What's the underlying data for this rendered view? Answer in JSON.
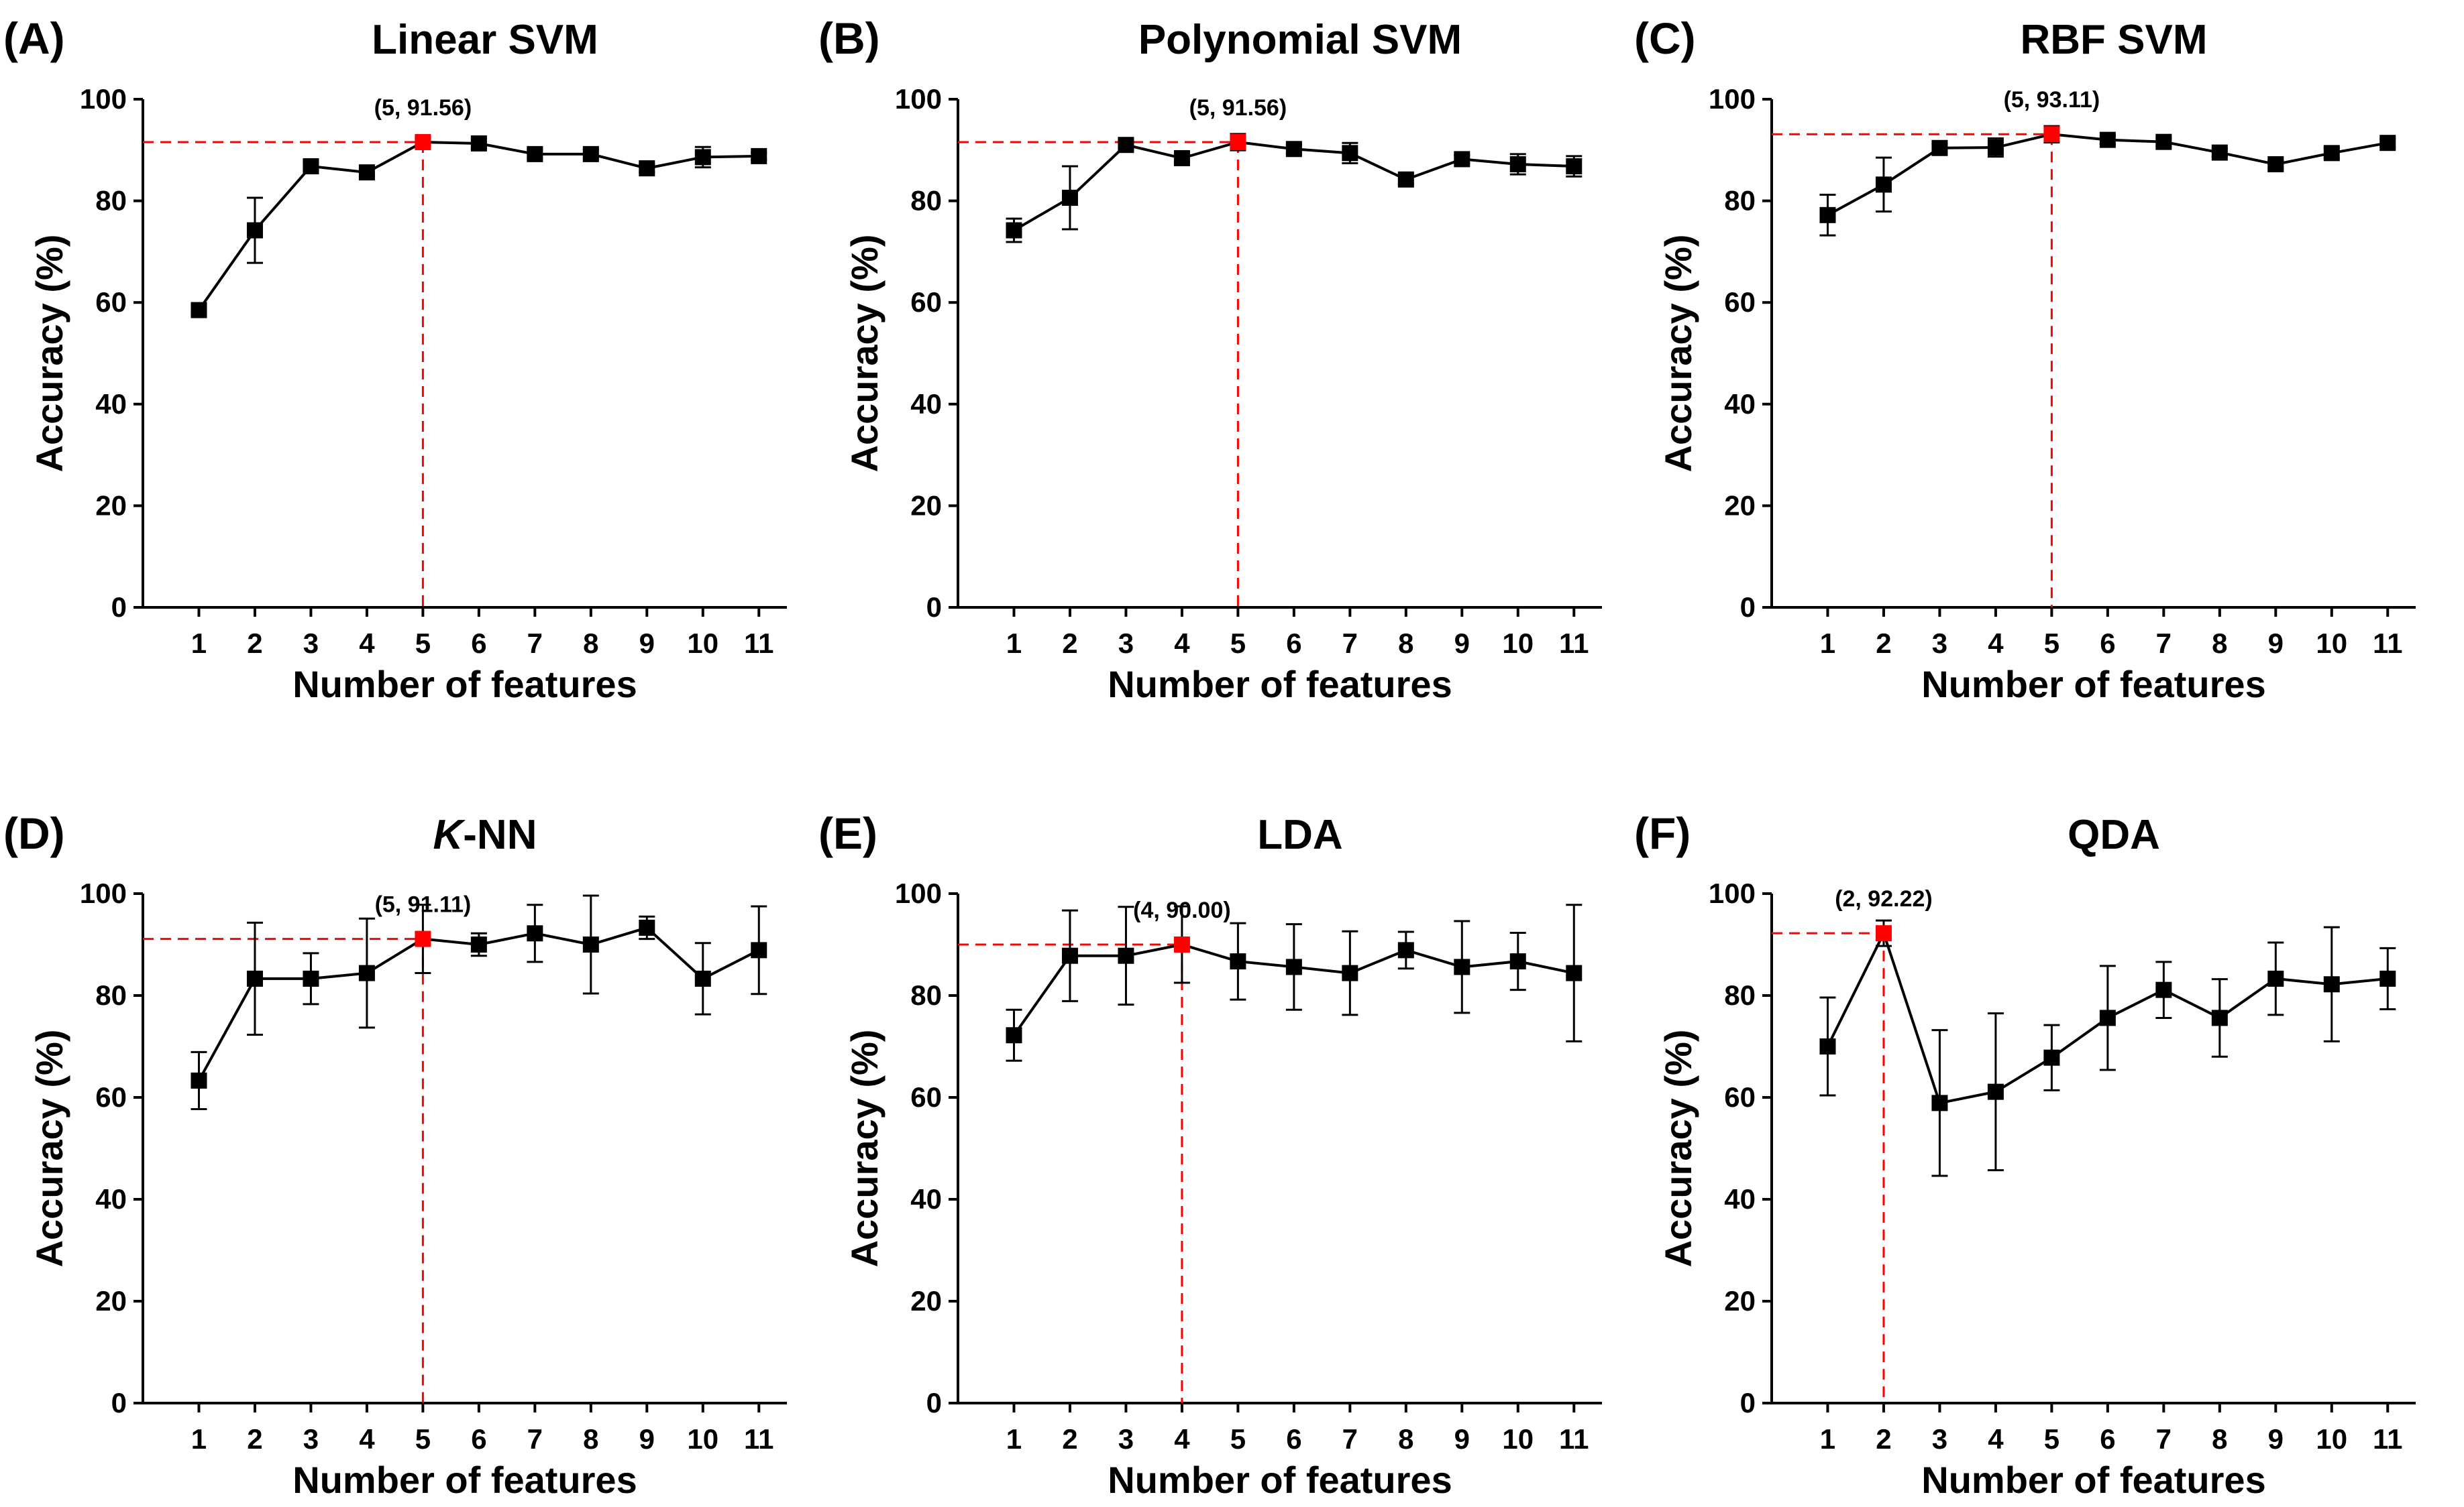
{
  "colors": {
    "series": "#000000",
    "highlight": "#ff0000",
    "guide": "#ff0000"
  },
  "chart_data": [
    {
      "type": "line",
      "panel": "(A)",
      "title": "Linear SVM",
      "title_italic": "",
      "xlabel": "Number of features",
      "ylabel": "Accuracy (%)",
      "xlim": [
        0,
        11.5
      ],
      "ylim": [
        0,
        100
      ],
      "yticks": [
        0,
        20,
        40,
        60,
        80,
        100
      ],
      "x": [
        1,
        2,
        3,
        4,
        5,
        6,
        7,
        8,
        9,
        10,
        11
      ],
      "values": [
        58.5,
        74.2,
        86.8,
        85.6,
        91.56,
        91.3,
        89.2,
        89.2,
        86.4,
        88.6,
        88.8
      ],
      "errors": [
        1.0,
        6.4,
        0.8,
        0.8,
        0.8,
        1.0,
        0.9,
        0.9,
        0.8,
        2.0,
        0.7
      ],
      "highlight": {
        "x": 5,
        "y": 91.56,
        "label": "(5, 91.56)"
      }
    },
    {
      "type": "line",
      "panel": "(B)",
      "title": "Polynomial SVM",
      "title_italic": "",
      "xlabel": "Number of features",
      "ylabel": "Accuracy (%)",
      "xlim": [
        0,
        11.5
      ],
      "ylim": [
        0,
        100
      ],
      "yticks": [
        0,
        20,
        40,
        60,
        80,
        100
      ],
      "x": [
        1,
        2,
        3,
        4,
        5,
        6,
        7,
        8,
        9,
        10,
        11
      ],
      "values": [
        74.2,
        80.6,
        91.0,
        88.4,
        91.56,
        90.2,
        89.4,
        84.2,
        88.2,
        87.2,
        86.8
      ],
      "errors": [
        2.3,
        6.2,
        1.0,
        0.8,
        1.6,
        0.9,
        2.0,
        0.9,
        0.8,
        2.0,
        2.0
      ],
      "highlight": {
        "x": 5,
        "y": 91.56,
        "label": "(5, 91.56)"
      }
    },
    {
      "type": "line",
      "panel": "(C)",
      "title": "RBF SVM",
      "title_italic": "",
      "xlabel": "Number of features",
      "ylabel": "Accuracy (%)",
      "xlim": [
        0,
        11.5
      ],
      "ylim": [
        0,
        100
      ],
      "yticks": [
        0,
        20,
        40,
        60,
        80,
        100
      ],
      "x": [
        1,
        2,
        3,
        4,
        5,
        6,
        7,
        8,
        9,
        10,
        11
      ],
      "values": [
        77.2,
        83.2,
        90.4,
        90.5,
        93.11,
        92.0,
        91.6,
        89.5,
        87.2,
        89.4,
        91.4
      ],
      "errors": [
        4.0,
        5.3,
        0.8,
        1.8,
        1.6,
        0.8,
        0.8,
        0.8,
        0.8,
        1.0,
        0.8
      ],
      "highlight": {
        "x": 5,
        "y": 93.11,
        "label": "(5, 93.11)"
      }
    },
    {
      "type": "line",
      "panel": "(D)",
      "title": "-NN",
      "title_italic": "K",
      "xlabel": "Number of features",
      "ylabel": "Accuracy (%)",
      "xlim": [
        0,
        11.5
      ],
      "ylim": [
        0,
        100
      ],
      "yticks": [
        0,
        20,
        40,
        60,
        80,
        100
      ],
      "x": [
        1,
        2,
        3,
        4,
        5,
        6,
        7,
        8,
        9,
        10,
        11
      ],
      "values": [
        63.3,
        83.3,
        83.3,
        84.4,
        91.11,
        90.0,
        92.2,
        90.0,
        93.3,
        83.3,
        88.9
      ],
      "errors": [
        5.6,
        11.0,
        5.0,
        10.7,
        6.7,
        2.2,
        5.6,
        9.6,
        2.2,
        7.0,
        8.6
      ],
      "highlight": {
        "x": 5,
        "y": 91.11,
        "label": "(5, 91.11)"
      }
    },
    {
      "type": "line",
      "panel": "(E)",
      "title": "LDA",
      "title_italic": "",
      "xlabel": "Number of features",
      "ylabel": "Accuracy (%)",
      "xlim": [
        0,
        11.5
      ],
      "ylim": [
        0,
        100
      ],
      "yticks": [
        0,
        20,
        40,
        60,
        80,
        100
      ],
      "x": [
        1,
        2,
        3,
        4,
        5,
        6,
        7,
        8,
        9,
        10,
        11
      ],
      "values": [
        72.2,
        87.8,
        87.8,
        90.0,
        86.7,
        85.6,
        84.4,
        88.9,
        85.6,
        86.7,
        84.4
      ],
      "errors": [
        5.0,
        8.9,
        9.6,
        7.5,
        7.5,
        8.4,
        8.2,
        3.6,
        9.0,
        5.6,
        13.4
      ],
      "highlight": {
        "x": 4,
        "y": 90.0,
        "label": "(4, 90.00)"
      }
    },
    {
      "type": "line",
      "panel": "(F)",
      "title": "QDA",
      "title_italic": "",
      "xlabel": "Number of features",
      "ylabel": "Accuracy (%)",
      "xlim": [
        0,
        11.5
      ],
      "ylim": [
        0,
        100
      ],
      "yticks": [
        0,
        20,
        40,
        60,
        80,
        100
      ],
      "x": [
        1,
        2,
        3,
        4,
        5,
        6,
        7,
        8,
        9,
        10,
        11
      ],
      "values": [
        70.0,
        92.22,
        58.9,
        61.1,
        67.8,
        75.6,
        81.1,
        75.6,
        83.3,
        82.2,
        83.3
      ],
      "errors": [
        9.6,
        2.5,
        14.3,
        15.4,
        6.4,
        10.2,
        5.5,
        7.6,
        7.1,
        11.2,
        6.0
      ],
      "highlight": {
        "x": 2,
        "y": 92.22,
        "label": "(2, 92.22)"
      }
    }
  ]
}
